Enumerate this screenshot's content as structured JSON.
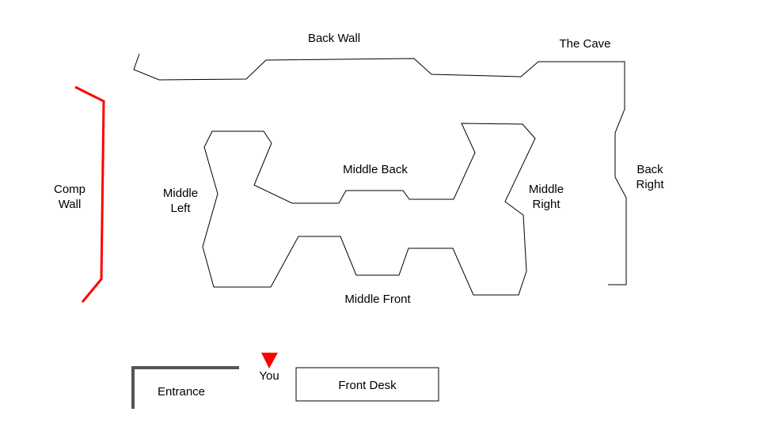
{
  "map": {
    "colors": {
      "comp_wall": "#ff0000",
      "marker": "#ff0000",
      "entrance_wall": "#555555",
      "walls": "#000000"
    },
    "areas": {
      "back_wall": "Back Wall",
      "the_cave": "The Cave",
      "back_right": [
        "Back",
        "Right"
      ],
      "comp_wall": [
        "Comp",
        "Wall"
      ],
      "middle_left": [
        "Middle",
        "Left"
      ],
      "middle_back": "Middle Back",
      "middle_right": [
        "Middle",
        "Right"
      ],
      "middle_front": "Middle Front",
      "entrance": "Entrance",
      "front_desk": "Front Desk"
    },
    "marker": {
      "icon": "red-down-triangle-icon",
      "label": "You"
    }
  }
}
